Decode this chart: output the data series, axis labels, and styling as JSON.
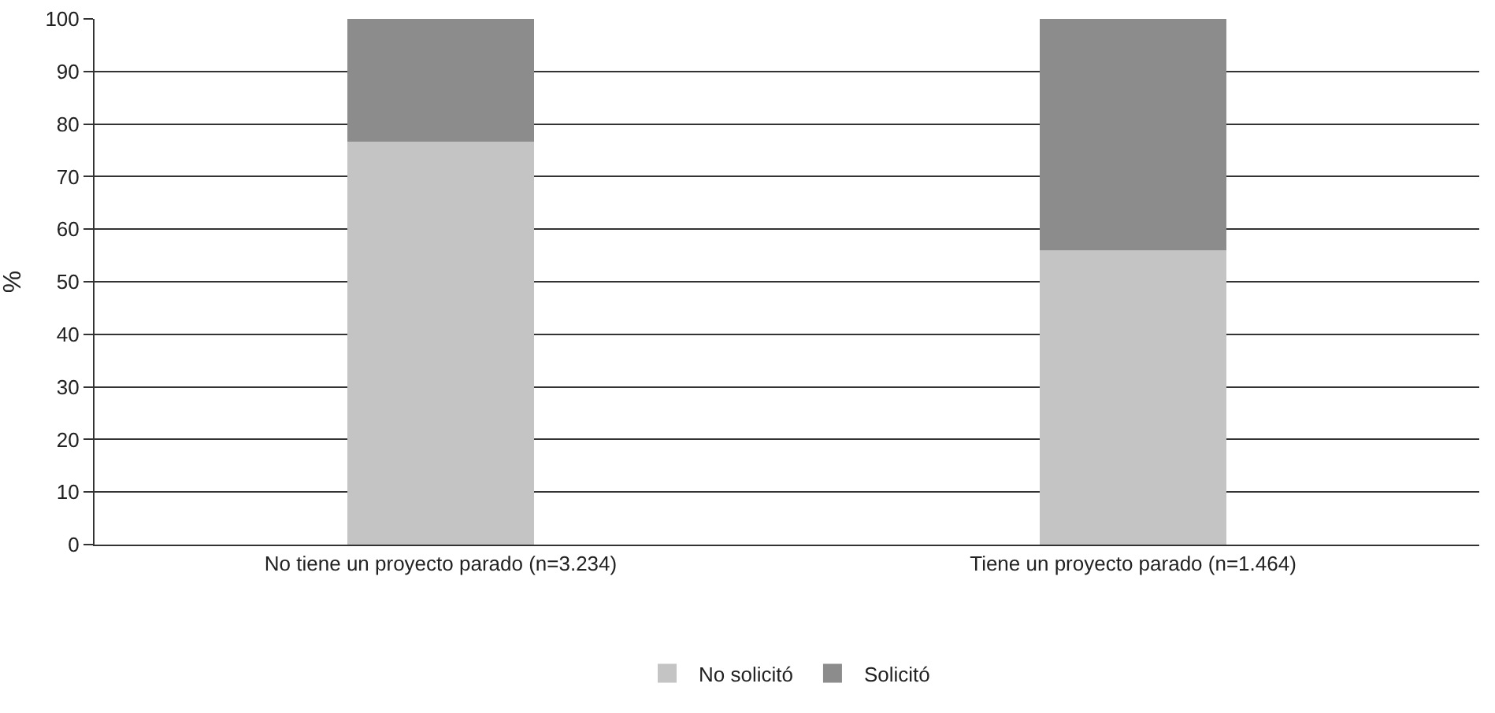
{
  "chart_data": {
    "type": "bar",
    "stacked": true,
    "ylabel": "%",
    "categories": [
      "No tiene un proyecto parado (n=3.234)",
      "Tiene un proyecto parado (n=1.464)"
    ],
    "series": [
      {
        "name": "No solicitó",
        "color": "#c4c4c4",
        "values": [
          76.7,
          56
        ]
      },
      {
        "name": "Solicitó",
        "color": "#8c8c8c",
        "values": [
          23.3,
          44
        ]
      }
    ],
    "ylim": [
      0,
      100
    ],
    "yticks": [
      0,
      10,
      20,
      30,
      40,
      50,
      60,
      70,
      80,
      90,
      100
    ],
    "grid": "y",
    "legend": "bottom"
  }
}
